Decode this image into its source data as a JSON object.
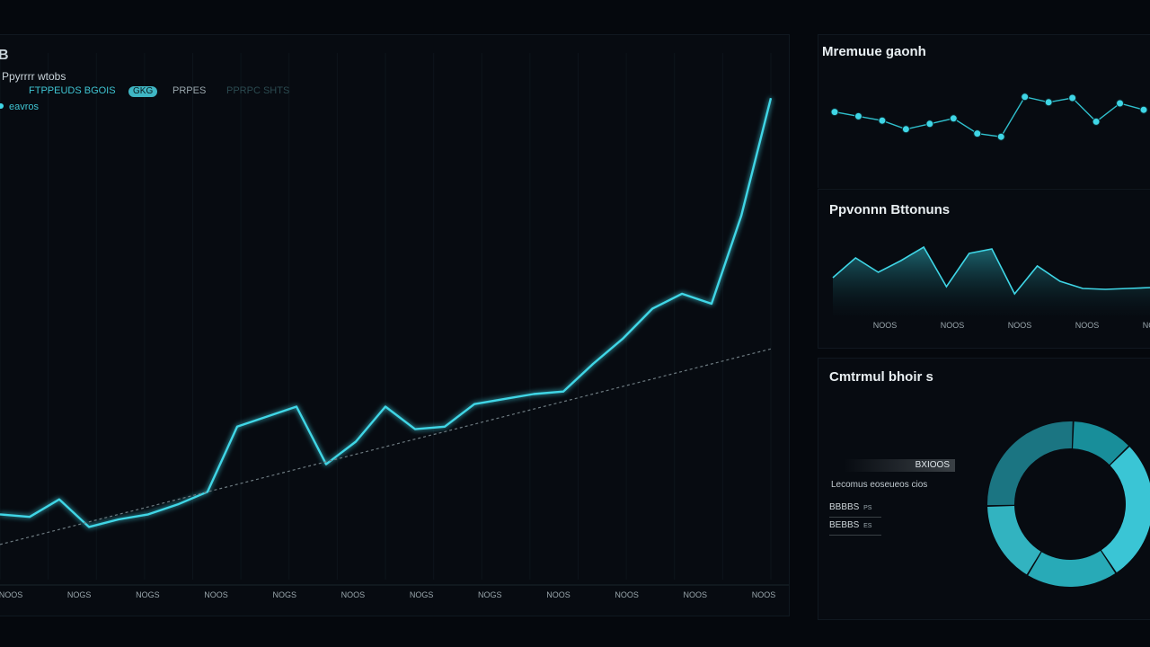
{
  "colors": {
    "background": "#05080d",
    "accent": "#3fd6e6",
    "accent_dim": "#1f7f8a",
    "trend": "#6d7a80",
    "muted": "#9aa7ad"
  },
  "main_chart": {
    "corner_label": "B",
    "legend_title": "Ppyrrrr wtobs",
    "legend_items": [
      "FTPPEUDS BGOIS",
      "GKG",
      "PRPES",
      "PPRPC SHTS"
    ],
    "legend_sub": "eavros"
  },
  "chart_data": [
    {
      "type": "line",
      "x": [
        0,
        1,
        2,
        3,
        4,
        5,
        6,
        7,
        8,
        9,
        10,
        11,
        12,
        13,
        14,
        15,
        16,
        17,
        18,
        19,
        20,
        21,
        22,
        23,
        24,
        25,
        26
      ],
      "series": [
        {
          "values": [
            2.6,
            2.5,
            3.2,
            2.1,
            2.4,
            2.6,
            3.0,
            3.5,
            6.1,
            6.5,
            6.9,
            4.6,
            5.5,
            6.9,
            6.0,
            6.1,
            7.0,
            7.2,
            7.4,
            7.5,
            8.6,
            9.6,
            10.8,
            11.4,
            11.0,
            14.5,
            19.2
          ]
        },
        {
          "name": "trend",
          "values": [
            1.4,
            1.7,
            2.0,
            2.3,
            2.6,
            2.9,
            3.2,
            3.5,
            3.8,
            4.1,
            4.4,
            4.7,
            5.0,
            5.3,
            5.6,
            5.9,
            6.2,
            6.5,
            6.8,
            7.1,
            7.4,
            7.7,
            8.0,
            8.3,
            8.6,
            8.9,
            9.2
          ]
        }
      ],
      "x_tick_labels": [
        "NOOS",
        "NOGS",
        "NOGS",
        "NOOS",
        "NOGS",
        "NOOS",
        "NOGS",
        "NOGS",
        "NOOS",
        "NOOS",
        "NOOS",
        "NOOS"
      ],
      "ylim": [
        0,
        21
      ],
      "grid": true,
      "title": "",
      "xlabel": "",
      "ylabel": ""
    },
    {
      "type": "scatter",
      "title": "Mremuue gaonh",
      "x": [
        0,
        1,
        2,
        3,
        4,
        5,
        6,
        7,
        8,
        9,
        10,
        11,
        12,
        13
      ],
      "values": [
        6.2,
        5.8,
        5.4,
        4.6,
        5.1,
        5.6,
        4.2,
        3.9,
        7.6,
        7.1,
        7.5,
        5.3,
        7.0,
        6.4
      ],
      "ylim": [
        0,
        10
      ]
    },
    {
      "type": "area",
      "title": "Ppvonnn Bttonuns",
      "x": [
        0,
        1,
        2,
        3,
        4,
        5,
        6,
        7,
        8,
        9,
        10,
        11,
        12,
        13,
        14
      ],
      "values": [
        4.2,
        6.4,
        4.8,
        6.1,
        7.6,
        3.2,
        6.9,
        7.4,
        2.4,
        5.5,
        3.8,
        3.0,
        2.9,
        3.0,
        3.1
      ],
      "x_tick_labels": [
        "NOOS",
        "NOOS",
        "NOOS",
        "NOOS",
        "NOOS"
      ],
      "ylim": [
        0,
        10
      ]
    },
    {
      "type": "pie",
      "title": "Cmtrmul bhoir s",
      "donut": true,
      "slices": [
        {
          "value": 12,
          "color": "#1a9aa6"
        },
        {
          "value": 28,
          "color": "#3fd6e6"
        },
        {
          "value": 18,
          "color": "#2bb8c6"
        },
        {
          "value": 16,
          "color": "#36c2cf"
        },
        {
          "value": 26,
          "color": "#1d7f8c"
        }
      ]
    }
  ],
  "donut_panel": {
    "stat_bar_label": "BXIOOS",
    "caption": "Lecomus eoseueos cios",
    "rows": [
      {
        "label": "BBBBS",
        "value": "PS"
      },
      {
        "label": "BEBBS",
        "value": "ES"
      }
    ]
  }
}
